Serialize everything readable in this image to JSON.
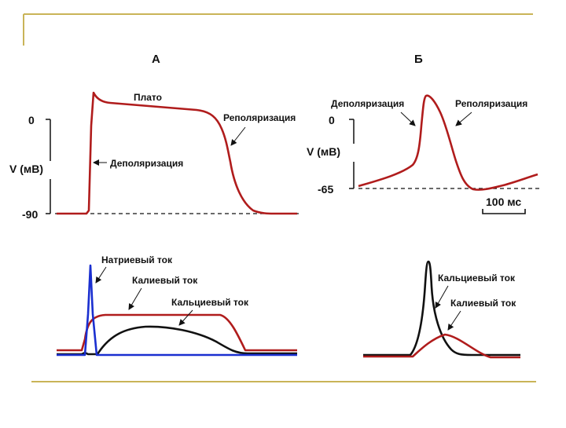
{
  "slide": {
    "frame_color": "#c9b458",
    "panel_a_title": "А",
    "panel_b_title": "Б"
  },
  "colors": {
    "action_potential": "#b01c1c",
    "sodium": "#1a2fd0",
    "potassium": "#b01c1c",
    "calcium": "#111111",
    "axis": "#111111"
  },
  "panel_a": {
    "top": {
      "y_axis_title": "V (мВ)",
      "tick_zero": "0",
      "tick_rest": "-90",
      "label_plateau": "Плато",
      "label_repolarization": "Реполяризация",
      "label_depolarization": "Деполяризация"
    },
    "bottom": {
      "label_sodium": "Натриевый ток",
      "label_potassium": "Калиевый ток",
      "label_calcium": "Кальциевый ток"
    }
  },
  "panel_b": {
    "top": {
      "y_axis_title": "V (мВ)",
      "tick_zero": "0",
      "tick_rest": "-65",
      "label_depolarization": "Деполяризация",
      "label_repolarization": "Реполяризация",
      "scale_bar_label": "100 мс"
    },
    "bottom": {
      "label_calcium": "Кальциевый ток",
      "label_potassium": "Калиевый ток"
    }
  }
}
